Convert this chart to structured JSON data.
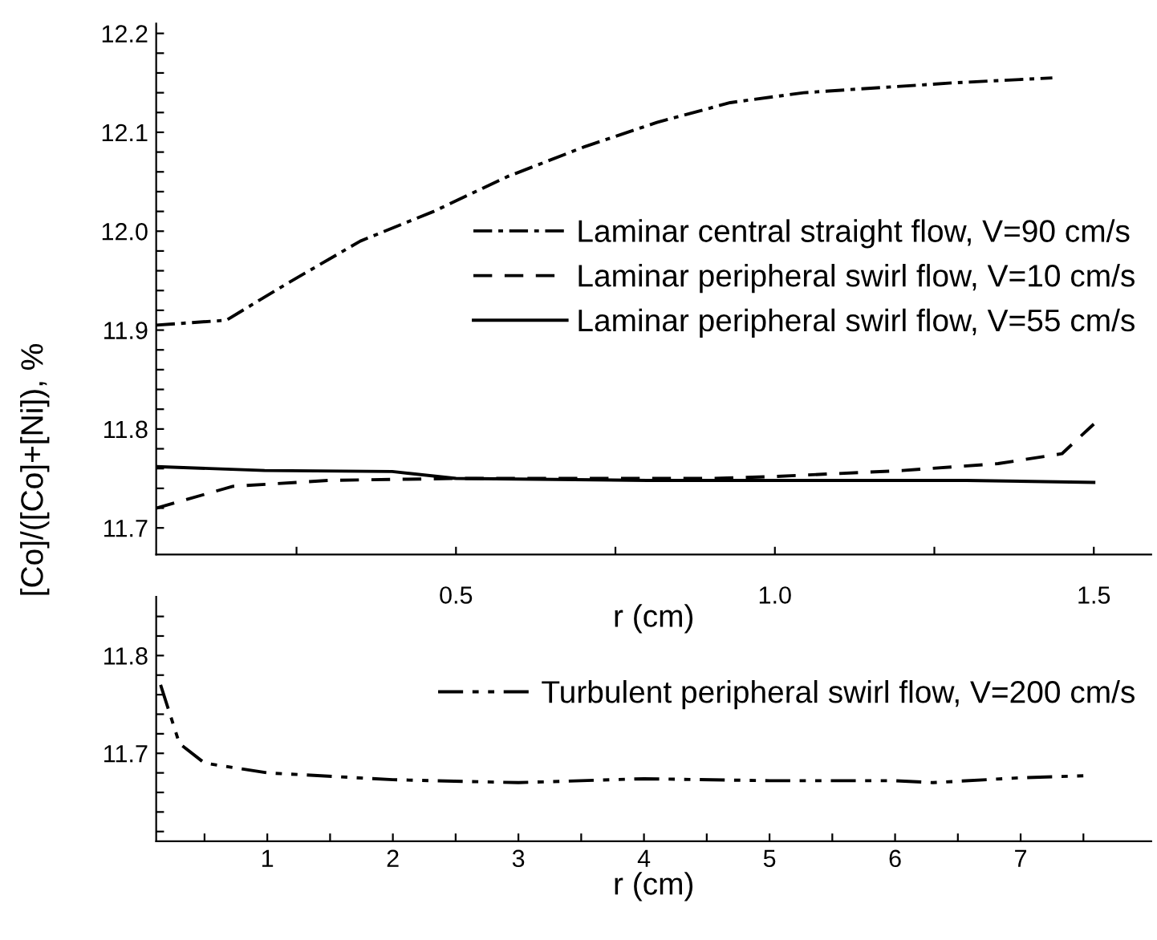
{
  "chart_data": [
    {
      "type": "line",
      "xlabel": "r (cm)",
      "ylabel": "[Co]/([Co]+[Ni]), %",
      "xlim": [
        0.03,
        1.59
      ],
      "ylim": [
        11.673,
        12.21
      ],
      "xticks": [
        {
          "value": 0.25,
          "label": null
        },
        0.5,
        {
          "value": 0.75,
          "label": null
        },
        {
          "value": 1.0,
          "label": "1.0"
        },
        {
          "value": 1.25,
          "label": null
        },
        1.5
      ],
      "yticks": [
        11.7,
        {
          "value": 11.72,
          "label": null
        },
        {
          "value": 11.74,
          "label": null
        },
        {
          "value": 11.76,
          "label": null
        },
        {
          "value": 11.78,
          "label": null
        },
        11.8,
        {
          "value": 11.82,
          "label": null
        },
        {
          "value": 11.84,
          "label": null
        },
        {
          "value": 11.86,
          "label": null
        },
        {
          "value": 11.88,
          "label": null
        },
        11.9,
        {
          "value": 11.92,
          "label": null
        },
        {
          "value": 11.94,
          "label": null
        },
        {
          "value": 11.96,
          "label": null
        },
        {
          "value": 11.98,
          "label": null
        },
        {
          "value": 12.0,
          "label": "12.0"
        },
        {
          "value": 12.02,
          "label": null
        },
        {
          "value": 12.04,
          "label": null
        },
        {
          "value": 12.06,
          "label": null
        },
        {
          "value": 12.08,
          "label": null
        },
        12.1,
        {
          "value": 12.12,
          "label": null
        },
        {
          "value": 12.14,
          "label": null
        },
        {
          "value": 12.16,
          "label": null
        },
        {
          "value": 12.18,
          "label": null
        },
        12.2
      ],
      "grid": false,
      "legend": "right",
      "marker": "none",
      "series": [
        {
          "name": "Laminar central straight flow, V=90 cm/s",
          "color": "#000000",
          "line_style": "dashdot",
          "x": [
            0.03,
            0.14,
            0.235,
            0.35,
            0.465,
            0.58,
            0.7,
            0.815,
            0.93,
            1.045,
            1.16,
            1.28,
            1.435
          ],
          "values": [
            11.905,
            11.91,
            11.947,
            11.99,
            12.02,
            12.055,
            12.085,
            12.11,
            12.13,
            12.14,
            12.145,
            12.15,
            12.155
          ]
        },
        {
          "name": "Laminar peripheral swirl flow, V=10 cm/s",
          "color": "#000000",
          "line_style": "dashed",
          "x": [
            0.03,
            0.15,
            0.3,
            0.5,
            0.7,
            0.9,
            1.0,
            1.2,
            1.35,
            1.45,
            1.5
          ],
          "values": [
            11.72,
            11.742,
            11.748,
            11.75,
            11.75,
            11.75,
            11.752,
            11.758,
            11.765,
            11.775,
            11.805
          ]
        },
        {
          "name": "Laminar peripheral swirl flow, V=55 cm/s",
          "color": "#000000",
          "line_style": "solid",
          "x": [
            0.03,
            0.2,
            0.4,
            0.5,
            0.8,
            1.0,
            1.3,
            1.5
          ],
          "values": [
            11.762,
            11.758,
            11.757,
            11.75,
            11.748,
            11.748,
            11.748,
            11.746
          ]
        }
      ]
    },
    {
      "type": "line",
      "xlabel": "r (cm)",
      "xlim": [
        0.115,
        8.04
      ],
      "ylim": [
        11.61,
        11.86
      ],
      "xticks": [
        {
          "value": 0.5,
          "label": null
        },
        1,
        {
          "value": 1.5,
          "label": null
        },
        2,
        {
          "value": 2.5,
          "label": null
        },
        3,
        {
          "value": 3.5,
          "label": null
        },
        4,
        {
          "value": 4.5,
          "label": null
        },
        5,
        {
          "value": 5.5,
          "label": null
        },
        6,
        {
          "value": 6.5,
          "label": null
        },
        7,
        {
          "value": 7.5,
          "label": null
        }
      ],
      "yticks": [
        {
          "value": 11.62,
          "label": null
        },
        {
          "value": 11.64,
          "label": null
        },
        {
          "value": 11.66,
          "label": null
        },
        {
          "value": 11.68,
          "label": null
        },
        11.7,
        {
          "value": 11.72,
          "label": null
        },
        {
          "value": 11.74,
          "label": null
        },
        {
          "value": 11.76,
          "label": null
        },
        {
          "value": 11.78,
          "label": null
        },
        11.8,
        {
          "value": 11.82,
          "label": null
        },
        {
          "value": 11.84,
          "label": null
        }
      ],
      "grid": false,
      "legend": "right",
      "marker": "none",
      "series": [
        {
          "name": "Turbulent peripheral swirl flow, V=200 cm/s",
          "color": "#000000",
          "line_style": "dashdotdot",
          "x": [
            0.15,
            0.3,
            0.5,
            1,
            2,
            3,
            4,
            5,
            6,
            6.3,
            7,
            7.5
          ],
          "values": [
            11.77,
            11.71,
            11.69,
            11.68,
            11.673,
            11.67,
            11.674,
            11.672,
            11.672,
            11.67,
            11.675,
            11.677
          ]
        }
      ]
    }
  ]
}
